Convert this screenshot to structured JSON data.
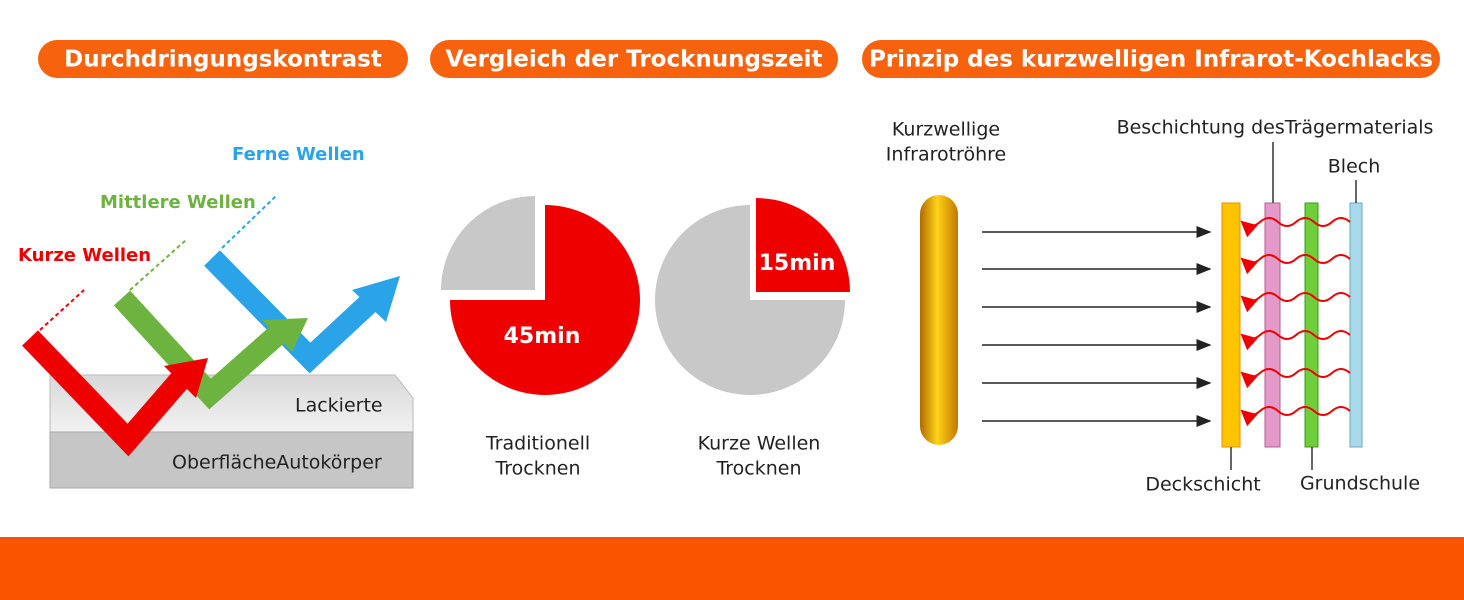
{
  "sections": [
    {
      "title": "Durchdringungskontrast"
    },
    {
      "title": "Vergleich der Trocknungszeit"
    },
    {
      "title": "Prinzip des kurzwelligen Infrarot-Kochlacks"
    }
  ],
  "penetration": {
    "far": "Ferne Wellen",
    "medium": "Mittlere Wellen",
    "short": "Kurze Wellen",
    "surface_top": "Lackierte",
    "surface_bottom": "OberflächeAutokörper"
  },
  "drying": [
    {
      "time": "45min",
      "caption": [
        "Traditionell",
        "Trocknen"
      ]
    },
    {
      "time": "15min",
      "caption": [
        "Kurze Wellen",
        "Trocknen"
      ]
    }
  ],
  "principle": {
    "tube": [
      "Kurzwellige",
      "Infrarotröhre"
    ],
    "coating": "Beschichtung desTrägermaterials",
    "sheet": "Blech",
    "top_layer": "Deckschicht",
    "primer": "Grundschule"
  }
}
